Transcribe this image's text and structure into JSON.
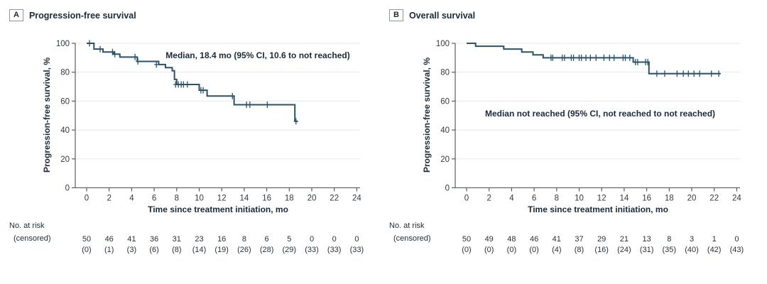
{
  "colors": {
    "curve": "#2b5266",
    "grid": "#ececec",
    "axis": "#4a4f55",
    "tick_text": "#32383f",
    "risk_text": "#27313a",
    "dark_text": "#1c2a37",
    "background": "#ffffff"
  },
  "figure": {
    "panels": [
      {
        "letter": "A",
        "title": "Progression-free survival",
        "annotation": "Median, 18.4 mo (95% CI, 10.6 to not reached)",
        "y_axis_label": "Progression-free survival, %",
        "x_axis_label": "Time since treatment initiation, mo",
        "risk_label_line1": "No. at risk",
        "risk_label_line2": "(censored)"
      },
      {
        "letter": "B",
        "title": "Overall survival",
        "annotation": "Median not reached (95% CI, not reached to not reached)",
        "y_axis_label": "Progression-free survival, %",
        "x_axis_label": "Time since treatment initiation, mo",
        "risk_label_line1": "No. at risk",
        "risk_label_line2": "(censored)"
      }
    ]
  },
  "chart_data": [
    {
      "type": "line",
      "subtype": "kaplan-meier-step",
      "panel": "A",
      "title": "Progression-free survival",
      "annotation": "Median, 18.4 mo (95% CI, 10.6 to not reached)",
      "xlabel": "Time since treatment initiation, mo",
      "ylabel": "Progression-free survival, %",
      "xlim": [
        0,
        24
      ],
      "ylim": [
        0,
        100
      ],
      "xticks": [
        0,
        2,
        4,
        6,
        8,
        10,
        12,
        14,
        16,
        18,
        20,
        22,
        24
      ],
      "yticks": [
        0,
        20,
        40,
        60,
        80,
        100
      ],
      "grid": "horizontal",
      "legend": "none",
      "steps": [
        [
          0,
          100
        ],
        [
          0.65,
          96
        ],
        [
          1.45,
          94
        ],
        [
          2.4,
          92.5
        ],
        [
          2.95,
          90.5
        ],
        [
          4.5,
          87.5
        ],
        [
          6.4,
          85.3
        ],
        [
          7.0,
          83.2
        ],
        [
          7.6,
          81
        ],
        [
          7.8,
          75
        ],
        [
          8.0,
          71.5
        ],
        [
          10.0,
          67.5
        ],
        [
          10.7,
          63.5
        ],
        [
          13.1,
          57.5
        ],
        [
          18.5,
          46
        ]
      ],
      "curve_end": 18.75,
      "censor_marks": [
        [
          0.25,
          100
        ],
        [
          1.2,
          96
        ],
        [
          2.3,
          94
        ],
        [
          2.5,
          92.5
        ],
        [
          4.3,
          90.5
        ],
        [
          4.55,
          87.5
        ],
        [
          6.2,
          85.3
        ],
        [
          7.9,
          71.5
        ],
        [
          8.15,
          71.5
        ],
        [
          8.4,
          71.5
        ],
        [
          8.6,
          71.5
        ],
        [
          8.95,
          71.5
        ],
        [
          10.15,
          67.5
        ],
        [
          10.35,
          67.5
        ],
        [
          12.95,
          63.5
        ],
        [
          14.2,
          57.5
        ],
        [
          14.5,
          57.5
        ],
        [
          16.05,
          57.5
        ],
        [
          18.6,
          46
        ]
      ],
      "at_risk": {
        "times": [
          0,
          2,
          4,
          6,
          8,
          10,
          12,
          14,
          16,
          18,
          20,
          22,
          24
        ],
        "n": [
          50,
          46,
          41,
          36,
          31,
          23,
          16,
          8,
          6,
          5,
          0,
          0,
          0
        ],
        "censored": [
          0,
          1,
          3,
          6,
          8,
          14,
          19,
          26,
          28,
          29,
          33,
          33,
          33
        ]
      }
    },
    {
      "type": "line",
      "subtype": "kaplan-meier-step",
      "panel": "B",
      "title": "Overall survival",
      "annotation": "Median not reached (95% CI, not reached to not reached)",
      "xlabel": "Time since treatment initiation, mo",
      "ylabel": "Progression-free survival, %",
      "xlim": [
        0,
        24
      ],
      "ylim": [
        0,
        100
      ],
      "xticks": [
        0,
        2,
        4,
        6,
        8,
        10,
        12,
        14,
        16,
        18,
        20,
        22,
        24
      ],
      "yticks": [
        0,
        20,
        40,
        60,
        80,
        100
      ],
      "grid": "horizontal",
      "legend": "none",
      "steps": [
        [
          0,
          100
        ],
        [
          0.8,
          98
        ],
        [
          3.3,
          96
        ],
        [
          4.9,
          94
        ],
        [
          5.9,
          92
        ],
        [
          6.8,
          90
        ],
        [
          14.8,
          87
        ],
        [
          16.2,
          79
        ]
      ],
      "curve_end": 22.55,
      "censor_marks": [
        [
          7.5,
          90
        ],
        [
          7.65,
          90
        ],
        [
          8.5,
          90
        ],
        [
          8.7,
          90
        ],
        [
          9.3,
          90
        ],
        [
          9.5,
          90
        ],
        [
          10.0,
          90
        ],
        [
          10.2,
          90
        ],
        [
          10.6,
          90
        ],
        [
          11.0,
          90
        ],
        [
          11.5,
          90
        ],
        [
          12.2,
          90
        ],
        [
          12.7,
          90
        ],
        [
          13.1,
          90
        ],
        [
          13.9,
          90
        ],
        [
          14.1,
          90
        ],
        [
          14.5,
          90
        ],
        [
          15.0,
          87
        ],
        [
          15.2,
          87
        ],
        [
          15.9,
          87
        ],
        [
          16.1,
          87
        ],
        [
          16.9,
          79
        ],
        [
          17.6,
          79
        ],
        [
          18.7,
          79
        ],
        [
          19.25,
          79
        ],
        [
          19.7,
          79
        ],
        [
          20.2,
          79
        ],
        [
          20.7,
          79
        ],
        [
          21.75,
          79
        ],
        [
          22.4,
          79
        ]
      ],
      "at_risk": {
        "times": [
          0,
          2,
          4,
          6,
          8,
          10,
          12,
          14,
          16,
          18,
          20,
          22,
          24
        ],
        "n": [
          50,
          49,
          48,
          46,
          41,
          37,
          29,
          21,
          13,
          8,
          3,
          1,
          0
        ],
        "censored": [
          0,
          0,
          0,
          0,
          4,
          8,
          16,
          24,
          31,
          35,
          40,
          42,
          43
        ]
      }
    }
  ]
}
